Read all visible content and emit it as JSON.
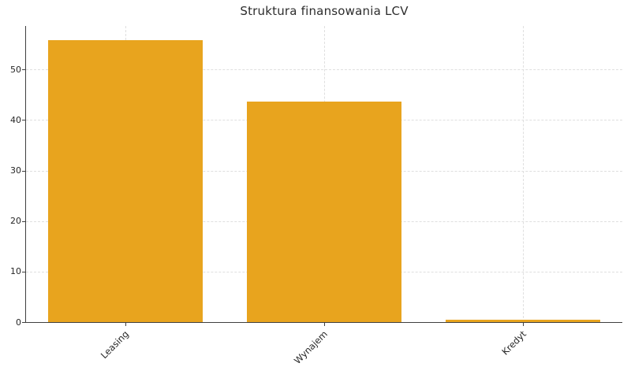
{
  "chart_data": {
    "type": "bar",
    "title": "Struktura finansowania LCV",
    "categories": [
      "Leasing",
      "Wynajem",
      "Kredyt"
    ],
    "values": [
      55.8,
      43.7,
      0.5
    ],
    "xlabel": "",
    "ylabel": "",
    "ylim": [
      0,
      58.6
    ],
    "yticks": [
      0,
      10,
      20,
      30,
      40,
      50
    ],
    "grid": true,
    "grid_style": "dashed",
    "legend_position": "none",
    "bar_color": "#E8A41E",
    "axis_color": "#3F3F3F",
    "grid_color": "#DFDFDF",
    "text_color": "#262626",
    "background_color": "#FFFFFF"
  }
}
